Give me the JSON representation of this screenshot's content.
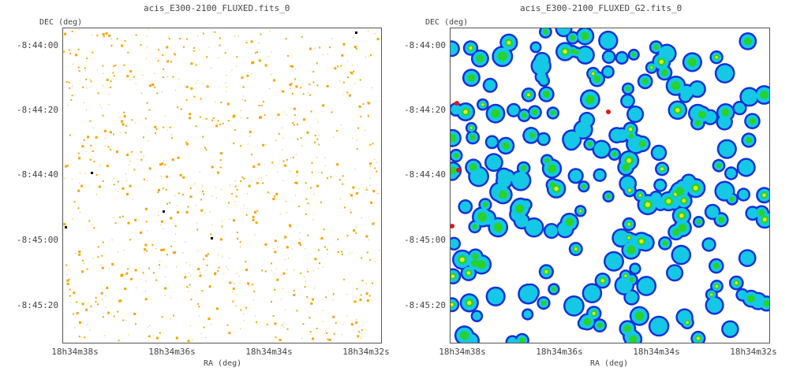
{
  "colors": {
    "frame": "#555555",
    "text": "#444444",
    "event_orange": "#f5a400",
    "event_dark": "#000000",
    "smooth_blue": "#1530d8",
    "smooth_cyan": "#14c8e6",
    "smooth_green": "#28d22a",
    "smooth_yellow": "#e8e62a",
    "smooth_red": "#e01818"
  },
  "left_panel": {
    "title": "acis_E300-2100_FLUXED.fits_0",
    "y_axis_name": "DEC (deg)",
    "x_axis_name": "RA (deg)",
    "dec_ticks": [
      "-8:44:00",
      "-8:44:20",
      "-8:44:40",
      "-8:45:00",
      "-8:45:20"
    ],
    "ra_ticks": [
      "18h34m38s",
      "18h34m36s",
      "18h34m34s",
      "18h34m32s"
    ]
  },
  "right_panel": {
    "title": "acis_E300-2100_FLUXED_G2.fits_0",
    "y_axis_name": "DEC (deg)",
    "x_axis_name": "RA (deg)",
    "dec_ticks": [
      "-8:44:00",
      "-8:44:20",
      "-8:44:40",
      "-8:45:00",
      "-8:45:20"
    ],
    "ra_ticks": [
      "18h34m38s",
      "18h34m36s",
      "18h34m34s",
      "18h34m32s"
    ]
  }
}
